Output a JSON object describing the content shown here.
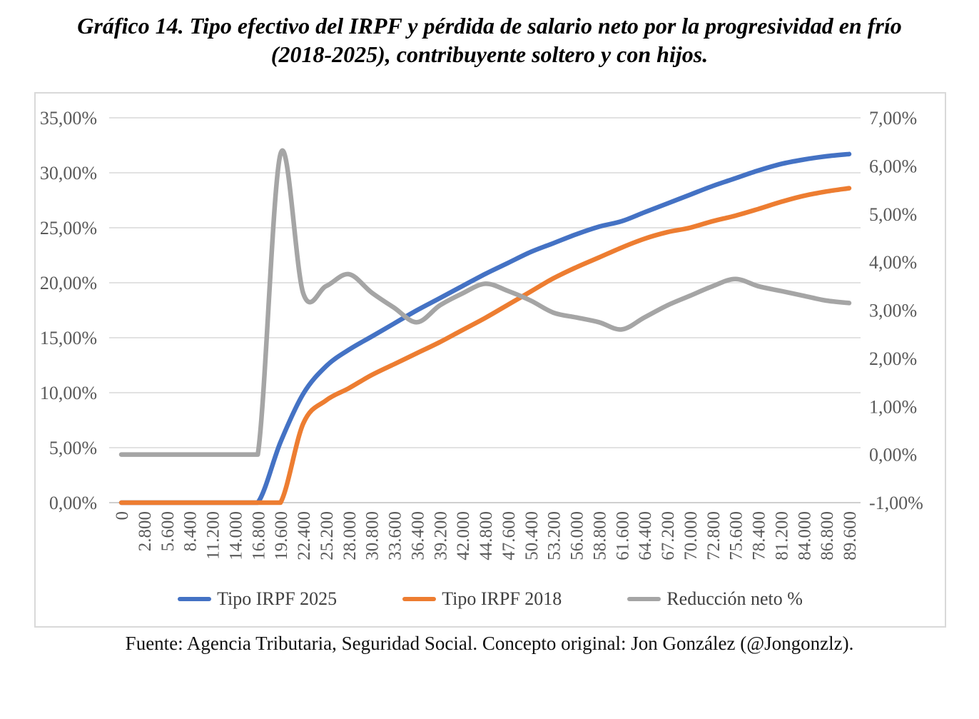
{
  "title": {
    "line1": "Gráfico 14. Tipo efectivo del IRPF y pérdida de salario neto por la progresividad en frío",
    "line2": "(2018-2025), contribuyente soltero y con hijos."
  },
  "footer": {
    "text": "Fuente: Agencia Tributaria, Seguridad Social. Concepto original: Jon González (@Jongonzlz)."
  },
  "chart_data": {
    "type": "line",
    "smoothed": true,
    "legend_position": "bottom",
    "grid": true,
    "grid_color": "#d9d9d9",
    "axis_label_color": "#595959",
    "categories": [
      "0",
      "2.800",
      "5.600",
      "8.400",
      "11.200",
      "14.000",
      "16.800",
      "19.600",
      "22.400",
      "25.200",
      "28.000",
      "30.800",
      "33.600",
      "36.400",
      "39.200",
      "42.000",
      "44.800",
      "47.600",
      "50.400",
      "53.200",
      "56.000",
      "58.800",
      "61.600",
      "64.400",
      "67.200",
      "70.000",
      "72.800",
      "75.600",
      "78.400",
      "81.200",
      "84.000",
      "86.800",
      "89.600"
    ],
    "left_axis": {
      "min": 0,
      "max": 35,
      "step": 5,
      "ticks": [
        "35,00%",
        "30,00%",
        "25,00%",
        "20,00%",
        "15,00%",
        "10,00%",
        "5,00%",
        "0,00%"
      ]
    },
    "right_axis": {
      "min": -1,
      "max": 7,
      "step": 1,
      "ticks": [
        "7,00%",
        "6,00%",
        "5,00%",
        "4,00%",
        "3,00%",
        "2,00%",
        "1,00%",
        "0,00%",
        "-1,00%"
      ]
    },
    "series": [
      {
        "name": "Tipo IRPF 2025",
        "color": "#4472C4",
        "axis": "left",
        "values": [
          0,
          0,
          0,
          0,
          0,
          0,
          0,
          5.5,
          9.9,
          12.4,
          13.9,
          15.1,
          16.3,
          17.5,
          18.6,
          19.7,
          20.8,
          21.8,
          22.8,
          23.6,
          24.4,
          25.1,
          25.6,
          26.4,
          27.2,
          28.0,
          28.8,
          29.5,
          30.2,
          30.8,
          31.2,
          31.5,
          31.7
        ]
      },
      {
        "name": "Tipo IRPF 2018",
        "color": "#ED7D31",
        "axis": "left",
        "values": [
          0,
          0,
          0,
          0,
          0,
          0,
          0,
          0,
          7.2,
          9.3,
          10.4,
          11.6,
          12.6,
          13.6,
          14.6,
          15.7,
          16.8,
          18.0,
          19.2,
          20.4,
          21.4,
          22.3,
          23.2,
          24.0,
          24.6,
          25.0,
          25.6,
          26.1,
          26.7,
          27.35,
          27.9,
          28.3,
          28.6
        ]
      },
      {
        "name": "Reducción neto %",
        "color": "#A5A5A5",
        "axis": "right",
        "values": [
          0,
          0,
          0,
          0,
          0,
          0,
          0,
          6.25,
          3.35,
          3.5,
          3.75,
          3.37,
          3.05,
          2.75,
          3.1,
          3.35,
          3.55,
          3.4,
          3.2,
          2.95,
          2.85,
          2.75,
          2.6,
          2.85,
          3.1,
          3.3,
          3.5,
          3.65,
          3.5,
          3.4,
          3.3,
          3.2,
          3.15
        ]
      }
    ]
  }
}
